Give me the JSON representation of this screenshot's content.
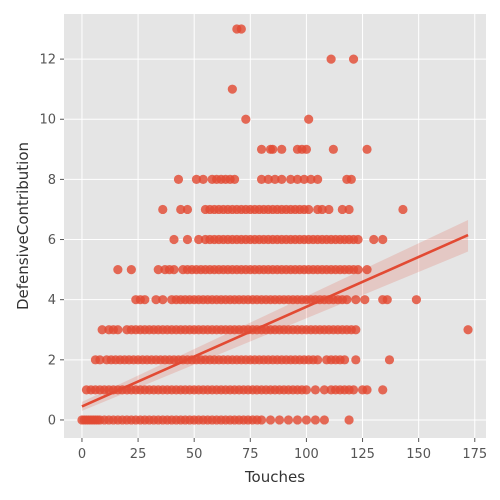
{
  "chart_data": {
    "type": "scatter",
    "title": "",
    "xlabel": "Touches",
    "ylabel": "DefensiveContribution",
    "xlim": [
      -8,
      180
    ],
    "ylim": [
      -0.6,
      13.5
    ],
    "xticks": [
      0,
      25,
      50,
      75,
      100,
      125,
      150,
      175
    ],
    "yticks": [
      0,
      2,
      4,
      6,
      8,
      10,
      12
    ],
    "grid": true,
    "legend": "none",
    "style": "ggplot",
    "colors": {
      "background": "#E5E5E5",
      "grid": "#FFFFFF",
      "points": "#E24A33",
      "regression": "#E24A33",
      "confidence_band": "#E24A33"
    },
    "regression": {
      "x": [
        0,
        172
      ],
      "y": [
        0.45,
        6.15
      ],
      "ci_lower": [
        0.3,
        5.6
      ],
      "ci_upper": [
        0.6,
        6.65
      ]
    },
    "series": [
      {
        "rows": [
          {
            "y": 0,
            "x": [
              0,
              1,
              2,
              3,
              4,
              5,
              6,
              7,
              8,
              10,
              12,
              14,
              16,
              18,
              20,
              22,
              24,
              26,
              28,
              30,
              32,
              34,
              36,
              38,
              40,
              42,
              44,
              46,
              48,
              50,
              52,
              54,
              56,
              58,
              60,
              62,
              64,
              66,
              68,
              70,
              72,
              74,
              76,
              78,
              80,
              84,
              88,
              92,
              96,
              100,
              104,
              108,
              119
            ]
          },
          {
            "y": 1,
            "x": [
              2,
              4,
              6,
              8,
              10,
              12,
              14,
              16,
              18,
              20,
              22,
              24,
              26,
              28,
              30,
              32,
              34,
              36,
              38,
              40,
              42,
              44,
              46,
              48,
              50,
              52,
              54,
              56,
              58,
              60,
              62,
              64,
              66,
              68,
              70,
              72,
              74,
              76,
              78,
              80,
              82,
              84,
              86,
              88,
              90,
              92,
              94,
              96,
              98,
              100,
              104,
              108,
              111,
              113,
              115,
              117,
              119,
              121,
              125,
              127,
              134
            ]
          },
          {
            "y": 2,
            "x": [
              6,
              8,
              11,
              13,
              15,
              17,
              19,
              21,
              23,
              25,
              27,
              29,
              31,
              33,
              35,
              37,
              39,
              41,
              43,
              45,
              47,
              49,
              51,
              53,
              55,
              57,
              59,
              61,
              63,
              65,
              67,
              69,
              71,
              73,
              75,
              77,
              79,
              81,
              83,
              85,
              87,
              89,
              91,
              93,
              95,
              97,
              99,
              101,
              103,
              105,
              109,
              111,
              113,
              115,
              117,
              122,
              137
            ]
          },
          {
            "y": 3,
            "x": [
              9,
              12,
              14,
              16,
              20,
              22,
              24,
              26,
              28,
              30,
              32,
              34,
              36,
              38,
              40,
              42,
              44,
              46,
              48,
              50,
              52,
              54,
              56,
              58,
              60,
              62,
              64,
              66,
              68,
              70,
              72,
              74,
              76,
              78,
              80,
              82,
              84,
              86,
              88,
              90,
              92,
              94,
              96,
              98,
              100,
              102,
              104,
              106,
              108,
              110,
              112,
              114,
              116,
              118,
              120,
              122,
              172
            ]
          },
          {
            "y": 4,
            "x": [
              24,
              26,
              28,
              33,
              36,
              40,
              42,
              44,
              46,
              48,
              50,
              52,
              54,
              56,
              58,
              60,
              62,
              64,
              66,
              68,
              70,
              72,
              74,
              76,
              78,
              80,
              82,
              84,
              86,
              88,
              90,
              92,
              94,
              96,
              98,
              100,
              102,
              104,
              106,
              108,
              110,
              112,
              114,
              116,
              118,
              122,
              126,
              134,
              136,
              149
            ]
          },
          {
            "y": 5,
            "x": [
              16,
              22,
              34,
              37,
              39,
              41,
              45,
              47,
              49,
              51,
              53,
              55,
              57,
              59,
              61,
              63,
              65,
              67,
              69,
              71,
              73,
              75,
              77,
              79,
              81,
              83,
              85,
              87,
              89,
              91,
              93,
              95,
              97,
              99,
              101,
              103,
              105,
              107,
              109,
              111,
              113,
              115,
              117,
              119,
              121,
              123,
              127
            ]
          },
          {
            "y": 6,
            "x": [
              41,
              47,
              52,
              55,
              57,
              59,
              61,
              63,
              65,
              67,
              69,
              71,
              73,
              75,
              77,
              79,
              81,
              83,
              85,
              87,
              89,
              91,
              93,
              95,
              97,
              99,
              101,
              103,
              105,
              107,
              109,
              111,
              113,
              115,
              117,
              119,
              121,
              123,
              130,
              134
            ]
          },
          {
            "y": 7,
            "x": [
              36,
              44,
              47,
              55,
              57,
              59,
              61,
              63,
              65,
              67,
              69,
              71,
              73,
              75,
              77,
              79,
              81,
              83,
              85,
              87,
              89,
              91,
              93,
              95,
              97,
              99,
              101,
              105,
              107,
              110,
              116,
              119,
              143
            ]
          },
          {
            "y": 8,
            "x": [
              43,
              51,
              54,
              58,
              60,
              62,
              64,
              66,
              68,
              80,
              83,
              86,
              89,
              93,
              96,
              99,
              102,
              105,
              118,
              120
            ]
          },
          {
            "y": 9,
            "x": [
              80,
              84,
              85,
              89,
              96,
              98,
              100,
              112,
              127
            ]
          },
          {
            "y": 10,
            "x": [
              73,
              101
            ]
          },
          {
            "y": 11,
            "x": [
              67
            ]
          },
          {
            "y": 12,
            "x": [
              111,
              121
            ]
          },
          {
            "y": 13,
            "x": [
              69,
              71
            ]
          }
        ]
      }
    ]
  }
}
